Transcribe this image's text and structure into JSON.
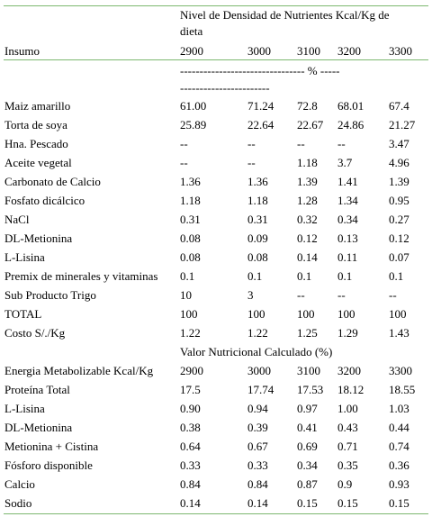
{
  "header": {
    "title": "Nivel de Densidad de Nutrientes Kcal/Kg de dieta",
    "columns": [
      "Insumo",
      "2900",
      "3000",
      "3100",
      "3200",
      "3300"
    ]
  },
  "unit_note": "-------------------------------- % ----------------------------",
  "rows": [
    [
      "Maiz amarillo",
      "61.00",
      "71.24",
      "72.8",
      "68.01",
      "67.4"
    ],
    [
      "Torta de soya",
      "25.89",
      "22.64",
      "22.67",
      "24.86",
      "21.27"
    ],
    [
      "Hna. Pescado",
      "--",
      "--",
      "--",
      "--",
      "3.47"
    ],
    [
      "Aceite vegetal",
      "--",
      "--",
      "1.18",
      "3.7",
      "4.96"
    ],
    [
      "Carbonato de Calcio",
      "1.36",
      "1.36",
      "1.39",
      "1.41",
      "1.39"
    ],
    [
      "Fosfato dicálcico",
      "1.18",
      "1.18",
      "1.28",
      "1.34",
      "0.95"
    ],
    [
      "NaCl",
      "0.31",
      "0.31",
      "0.32",
      "0.34",
      "0.27"
    ],
    [
      "DL-Metionina",
      "0.08",
      "0.09",
      "0.12",
      "0.13",
      "0.12"
    ],
    [
      "L-Lisina",
      "0.08",
      "0.08",
      "0.14",
      "0.11",
      "0.07"
    ],
    [
      "Premix de minerales y vitaminas",
      "0.1",
      "0.1",
      "0.1",
      "0.1",
      "0.1"
    ],
    [
      "Sub Producto Trigo",
      "10",
      "3",
      "--",
      "--",
      "--"
    ],
    [
      "TOTAL",
      "100",
      "100",
      "100",
      "100",
      "100"
    ],
    [
      "Costo S/./Kg",
      "1.22",
      "1.22",
      "1.25",
      "1.29",
      "1.43"
    ]
  ],
  "section": "Valor Nutricional Calculado (%)",
  "rows2": [
    [
      "Energia Metabolizable Kcal/Kg",
      "2900",
      "3000",
      "3100",
      "3200",
      "3300"
    ],
    [
      "Proteína Total",
      "17.5",
      "17.74",
      "17.53",
      "18.12",
      "18.55"
    ],
    [
      "L-Lisina",
      "0.90",
      "0.94",
      "0.97",
      "1.00",
      "1.03"
    ],
    [
      "DL-Metionina",
      "0.38",
      "0.39",
      "0.41",
      "0.43",
      "0.44"
    ],
    [
      "Metionina + Cistina",
      "0.64",
      "0.67",
      "0.69",
      "0.71",
      "0.74"
    ],
    [
      "Fósforo disponible",
      "0.33",
      "0.33",
      "0.34",
      "0.35",
      "0.36"
    ],
    [
      "Calcio",
      "0.84",
      "0.84",
      "0.87",
      "0.9",
      "0.93"
    ],
    [
      "Sodio",
      "0.14",
      "0.14",
      "0.15",
      "0.15",
      "0.15"
    ]
  ]
}
